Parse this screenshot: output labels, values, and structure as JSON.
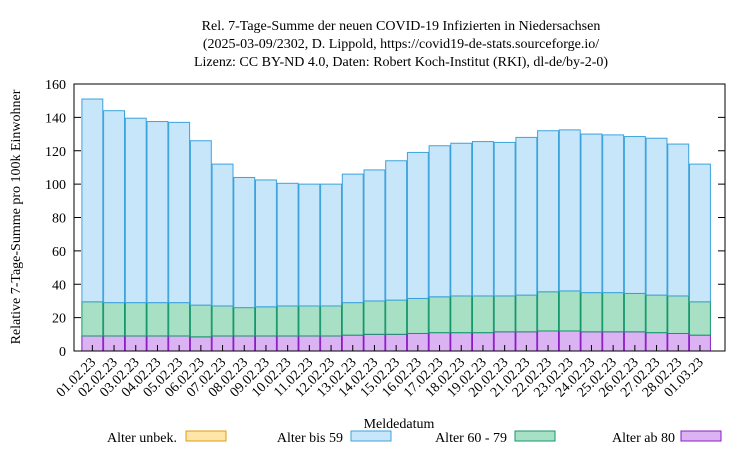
{
  "chart_data": {
    "type": "bar",
    "stacked": true,
    "title": [
      "Rel. 7-Tage-Summe der neuen COVID-19 Infizierten in Niedersachsen",
      "(2025-03-09/2302, D. Lippold, https://covid19-de-stats.sourceforge.io/",
      "Lizenz: CC BY-ND 4.0, Daten: Robert Koch-Institut (RKI), dl-de/by-2-0)"
    ],
    "xlabel": "Meldedatum",
    "ylabel": "Relative 7-Tage-Summe pro 100k Einwohner",
    "ylim": [
      0,
      160
    ],
    "yticks": [
      0,
      20,
      40,
      60,
      80,
      100,
      120,
      140,
      160
    ],
    "categories": [
      "01.02.23",
      "02.02.23",
      "03.02.23",
      "04.02.23",
      "05.02.23",
      "06.02.23",
      "07.02.23",
      "08.02.23",
      "09.02.23",
      "10.02.23",
      "11.02.23",
      "12.02.23",
      "13.02.23",
      "14.02.23",
      "15.02.23",
      "16.02.23",
      "17.02.23",
      "18.02.23",
      "19.02.23",
      "20.02.23",
      "21.02.23",
      "22.02.23",
      "23.02.23",
      "24.02.23",
      "25.02.23",
      "26.02.23",
      "27.02.23",
      "28.02.23",
      "01.03.23"
    ],
    "series": [
      {
        "name": "Alter ab 80",
        "fill": "#dbb3f2",
        "stroke": "#8a1cc6",
        "values": [
          9,
          9,
          9,
          9,
          9,
          8.5,
          9,
          9,
          9,
          9,
          9,
          9,
          9.5,
          10,
          10,
          10.5,
          11,
          11,
          11,
          11.5,
          11.5,
          12,
          12,
          11.5,
          11.5,
          11.5,
          11,
          10.5,
          9.5
        ]
      },
      {
        "name": "Alter 60 - 79",
        "fill": "#a8e0c5",
        "stroke": "#16976b",
        "values": [
          20.5,
          20,
          20,
          20,
          20,
          19,
          18,
          17,
          17.5,
          18,
          18,
          18,
          19.5,
          20,
          20.5,
          21,
          21.5,
          22,
          22,
          21.5,
          22,
          23.5,
          24,
          23.5,
          23.5,
          23,
          22.5,
          22.5,
          20
        ]
      },
      {
        "name": "Alter bis 59",
        "fill": "#c8e6fa",
        "stroke": "#3ba3dc",
        "values": [
          121.5,
          115,
          110.5,
          108.5,
          108,
          98.5,
          85,
          78,
          76,
          73.5,
          73,
          73,
          77,
          78.5,
          83.5,
          87.5,
          90.5,
          91.5,
          92.5,
          92,
          94.5,
          96.5,
          96.5,
          95,
          94.5,
          94,
          94,
          91,
          82.5
        ]
      },
      {
        "name": "Alter unbek.",
        "fill": "#fde6a8",
        "stroke": "#e09b12",
        "values": [
          0,
          0,
          0,
          0,
          0,
          0,
          0,
          0,
          0,
          0,
          0,
          0,
          0,
          0,
          0,
          0,
          0,
          0,
          0,
          0,
          0,
          0,
          0,
          0,
          0,
          0,
          0,
          0,
          0
        ]
      }
    ],
    "legend": {
      "placement": "bottom",
      "order": [
        "Alter unbek.",
        "Alter bis 59",
        "Alter 60 - 79",
        "Alter ab 80"
      ]
    },
    "grid": false
  }
}
